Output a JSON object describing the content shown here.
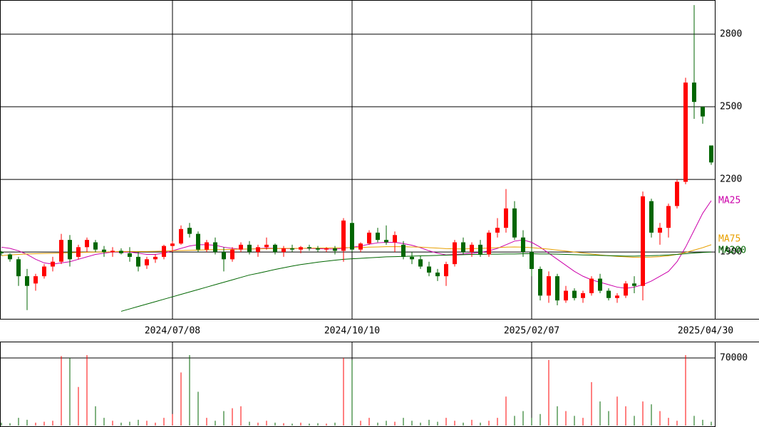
{
  "chart_data": {
    "type": "candlestick",
    "categories": [
      null,
      null,
      null,
      null,
      null,
      null,
      null,
      null,
      null,
      null,
      null,
      null,
      null,
      null,
      null,
      null,
      null,
      null,
      null,
      null,
      "2024/07/08",
      null,
      null,
      null,
      null,
      null,
      null,
      null,
      null,
      null,
      null,
      null,
      null,
      null,
      null,
      null,
      null,
      null,
      null,
      null,
      null,
      "2024/10/10",
      null,
      null,
      null,
      null,
      null,
      null,
      null,
      null,
      null,
      null,
      null,
      null,
      null,
      null,
      null,
      null,
      null,
      null,
      null,
      null,
      "2025/02/07",
      null,
      null,
      null,
      null,
      null,
      null,
      null,
      null,
      null,
      null,
      null,
      null,
      null,
      null,
      null,
      null,
      null,
      null,
      null,
      null,
      "2025/04/30"
    ],
    "candles": [
      [
        1900,
        1905,
        1885,
        1895
      ],
      [
        1890,
        1895,
        1860,
        1870
      ],
      [
        1870,
        1880,
        1760,
        1800
      ],
      [
        1800,
        1830,
        1660,
        1760
      ],
      [
        1770,
        1810,
        1740,
        1800
      ],
      [
        1800,
        1850,
        1790,
        1840
      ],
      [
        1840,
        1880,
        1820,
        1860
      ],
      [
        1860,
        1975,
        1850,
        1950
      ],
      [
        1950,
        1970,
        1840,
        1870
      ],
      [
        1880,
        1930,
        1870,
        1920
      ],
      [
        1920,
        1960,
        1900,
        1950
      ],
      [
        1940,
        1950,
        1900,
        1910
      ],
      [
        1910,
        1925,
        1880,
        1900
      ],
      [
        1900,
        1920,
        1880,
        1905
      ],
      [
        1905,
        1915,
        1890,
        1895
      ],
      [
        1895,
        1920,
        1860,
        1880
      ],
      [
        1880,
        1900,
        1820,
        1840
      ],
      [
        1845,
        1880,
        1830,
        1870
      ],
      [
        1870,
        1890,
        1855,
        1880
      ],
      [
        1880,
        1930,
        1870,
        1925
      ],
      [
        1925,
        1945,
        1900,
        1935
      ],
      [
        1935,
        2010,
        1930,
        1995
      ],
      [
        2000,
        2020,
        1960,
        1975
      ],
      [
        1975,
        1985,
        1900,
        1910
      ],
      [
        1910,
        1950,
        1900,
        1940
      ],
      [
        1940,
        1960,
        1890,
        1900
      ],
      [
        1900,
        1920,
        1820,
        1870
      ],
      [
        1870,
        1920,
        1860,
        1910
      ],
      [
        1910,
        1940,
        1900,
        1930
      ],
      [
        1930,
        1945,
        1890,
        1900
      ],
      [
        1900,
        1930,
        1880,
        1920
      ],
      [
        1920,
        1960,
        1910,
        1930
      ],
      [
        1930,
        1935,
        1890,
        1900
      ],
      [
        1900,
        1925,
        1880,
        1915
      ],
      [
        1915,
        1930,
        1900,
        1910
      ],
      [
        1910,
        1925,
        1895,
        1920
      ],
      [
        1920,
        1930,
        1905,
        1915
      ],
      [
        1915,
        1925,
        1900,
        1910
      ],
      [
        1910,
        1920,
        1900,
        1915
      ],
      [
        1915,
        1925,
        1890,
        1905
      ],
      [
        1905,
        2040,
        1860,
        2030
      ],
      [
        2020,
        2030,
        1900,
        1910
      ],
      [
        1910,
        1940,
        1900,
        1935
      ],
      [
        1935,
        1990,
        1930,
        1980
      ],
      [
        1980,
        2000,
        1940,
        1950
      ],
      [
        1950,
        2010,
        1930,
        1940
      ],
      [
        1940,
        1985,
        1900,
        1970
      ],
      [
        1930,
        1945,
        1870,
        1880
      ],
      [
        1880,
        1900,
        1850,
        1870
      ],
      [
        1870,
        1885,
        1830,
        1840
      ],
      [
        1840,
        1860,
        1800,
        1815
      ],
      [
        1815,
        1830,
        1780,
        1800
      ],
      [
        1800,
        1860,
        1760,
        1850
      ],
      [
        1850,
        1950,
        1840,
        1940
      ],
      [
        1940,
        1960,
        1890,
        1900
      ],
      [
        1900,
        1940,
        1880,
        1930
      ],
      [
        1930,
        1950,
        1880,
        1890
      ],
      [
        1890,
        1990,
        1880,
        1980
      ],
      [
        1980,
        2040,
        1960,
        2000
      ],
      [
        2000,
        2160,
        1980,
        2080
      ],
      [
        2080,
        2110,
        1950,
        1960
      ],
      [
        1960,
        1990,
        1880,
        1900
      ],
      [
        1900,
        1920,
        1800,
        1830
      ],
      [
        1830,
        1840,
        1700,
        1720
      ],
      [
        1720,
        1820,
        1690,
        1800
      ],
      [
        1800,
        1810,
        1680,
        1700
      ],
      [
        1700,
        1760,
        1690,
        1740
      ],
      [
        1740,
        1750,
        1700,
        1710
      ],
      [
        1710,
        1740,
        1690,
        1730
      ],
      [
        1730,
        1800,
        1720,
        1790
      ],
      [
        1790,
        1810,
        1730,
        1740
      ],
      [
        1740,
        1750,
        1700,
        1710
      ],
      [
        1710,
        1730,
        1690,
        1720
      ],
      [
        1720,
        1780,
        1710,
        1770
      ],
      [
        1770,
        1800,
        1730,
        1760
      ],
      [
        1760,
        2150,
        1700,
        2130
      ],
      [
        2110,
        2120,
        1960,
        1980
      ],
      [
        1980,
        2020,
        1930,
        2000
      ],
      [
        2000,
        2100,
        1960,
        2090
      ],
      [
        2090,
        2200,
        2080,
        2190
      ],
      [
        2190,
        2620,
        2180,
        2600
      ],
      [
        2600,
        2920,
        2450,
        2520
      ],
      [
        2500,
        2500,
        2430,
        2460
      ],
      [
        2340,
        2340,
        2260,
        2270
      ]
    ],
    "up_color": "#ff0000",
    "down_color": "#006600",
    "ylim": [
      1624,
      2941
    ],
    "yticks": [
      1900,
      2200,
      2500,
      2800
    ],
    "moving_averages": [
      {
        "name": "MA25",
        "color": "#cc00aa",
        "values": [
          1920,
          1915,
          1905,
          1890,
          1870,
          1855,
          1850,
          1855,
          1860,
          1870,
          1880,
          1890,
          1895,
          1900,
          1900,
          1900,
          1895,
          1890,
          1890,
          1895,
          1905,
          1915,
          1925,
          1930,
          1930,
          1928,
          1920,
          1915,
          1912,
          1912,
          1914,
          1916,
          1915,
          1914,
          1914,
          1915,
          1915,
          1914,
          1913,
          1912,
          1915,
          1920,
          1925,
          1932,
          1938,
          1940,
          1940,
          1935,
          1928,
          1918,
          1905,
          1895,
          1888,
          1890,
          1892,
          1895,
          1898,
          1905,
          1915,
          1930,
          1945,
          1950,
          1940,
          1920,
          1895,
          1870,
          1845,
          1820,
          1800,
          1785,
          1775,
          1765,
          1755,
          1750,
          1755,
          1765,
          1780,
          1800,
          1820,
          1860,
          1920,
          1990,
          2060,
          2112
        ]
      },
      {
        "name": "MA75",
        "color": "#e8a000",
        "values": [
          1885,
          1888,
          1890,
          1892,
          1893,
          1894,
          1895,
          1896,
          1897,
          1898,
          1899,
          1900,
          1900,
          1901,
          1902,
          1902,
          1902,
          1902,
          1903,
          1904,
          1905,
          1906,
          1907,
          1908,
          1909,
          1910,
          1910,
          1911,
          1912,
          1913,
          1913,
          1914,
          1914,
          1915,
          1915,
          1915,
          1916,
          1916,
          1917,
          1917,
          1918,
          1918,
          1919,
          1920,
          1921,
          1922,
          1922,
          1922,
          1921,
          1920,
          1918,
          1916,
          1914,
          1913,
          1913,
          1914,
          1915,
          1916,
          1918,
          1920,
          1921,
          1920,
          1918,
          1915,
          1912,
          1908,
          1904,
          1900,
          1896,
          1892,
          1888,
          1885,
          1882,
          1880,
          1878,
          1878,
          1879,
          1881,
          1884,
          1890,
          1898,
          1908,
          1918,
          1930
        ]
      },
      {
        "name": "MA200",
        "color": "#006600",
        "values": [
          null,
          null,
          null,
          null,
          null,
          null,
          null,
          null,
          null,
          null,
          null,
          null,
          null,
          null,
          1655,
          1665,
          1675,
          1685,
          1695,
          1705,
          1715,
          1725,
          1735,
          1745,
          1755,
          1765,
          1775,
          1785,
          1795,
          1805,
          1812,
          1820,
          1828,
          1835,
          1842,
          1848,
          1853,
          1858,
          1862,
          1866,
          1870,
          1872,
          1874,
          1876,
          1878,
          1880,
          1881,
          1882,
          1883,
          1884,
          1885,
          1886,
          1887,
          1888,
          1889,
          1890,
          1890,
          1891,
          1891,
          1892,
          1892,
          1893,
          1893,
          1892,
          1892,
          1891,
          1890,
          1889,
          1888,
          1887,
          1886,
          1885,
          1884,
          1883,
          1883,
          1884,
          1885,
          1886,
          1888,
          1890,
          1893,
          1896,
          1898,
          1900
        ]
      }
    ],
    "volume": {
      "values": [
        3000,
        2500,
        8000,
        6000,
        3000,
        4000,
        5000,
        72000,
        70000,
        40000,
        73000,
        20000,
        8000,
        5000,
        3000,
        4000,
        6000,
        5000,
        3000,
        8000,
        12000,
        55000,
        73000,
        35000,
        8000,
        5000,
        15000,
        18000,
        20000,
        4000,
        3000,
        5000,
        3000,
        2500,
        2000,
        3000,
        2000,
        2500,
        2000,
        3000,
        70000,
        68000,
        5000,
        8000,
        3000,
        5000,
        4000,
        8000,
        5000,
        3000,
        6000,
        4000,
        8000,
        5000,
        3000,
        6000,
        3000,
        5000,
        8000,
        30000,
        10000,
        15000,
        8000,
        12000,
        68000,
        20000,
        15000,
        10000,
        8000,
        45000,
        25000,
        15000,
        30000,
        20000,
        10000,
        25000,
        22000,
        15000,
        8000,
        5000,
        73000,
        10000,
        6000,
        4000
      ],
      "ylim": [
        0,
        87000
      ],
      "yticks": [
        70000
      ]
    }
  }
}
